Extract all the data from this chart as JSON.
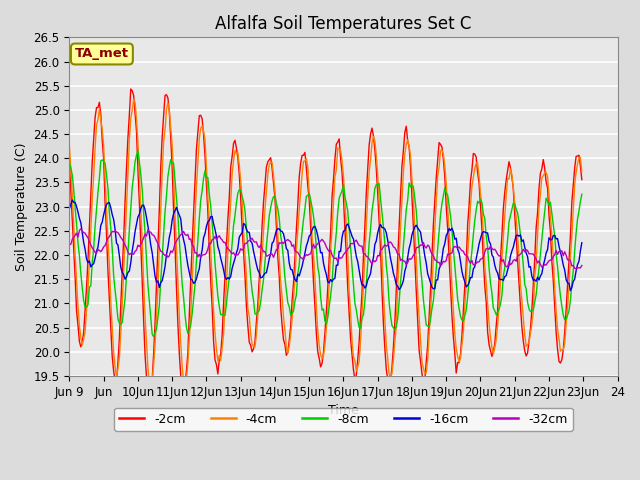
{
  "title": "Alfalfa Soil Temperatures Set C",
  "xlabel": "Time",
  "ylabel": "Soil Temperature (C)",
  "ylim": [
    19.5,
    26.5
  ],
  "annotation": "TA_met",
  "legend_labels": [
    "-2cm",
    "-4cm",
    "-8cm",
    "-16cm",
    "-32cm"
  ],
  "line_colors": [
    "#FF0000",
    "#FF8000",
    "#00CC00",
    "#0000DD",
    "#BB00BB"
  ],
  "background_color": "#DCDCDC",
  "plot_bg_color": "#E8E8E8",
  "grid_color": "#FFFFFF",
  "title_fontsize": 12,
  "axis_fontsize": 9,
  "tick_fontsize": 8.5,
  "linewidth": 1.0
}
